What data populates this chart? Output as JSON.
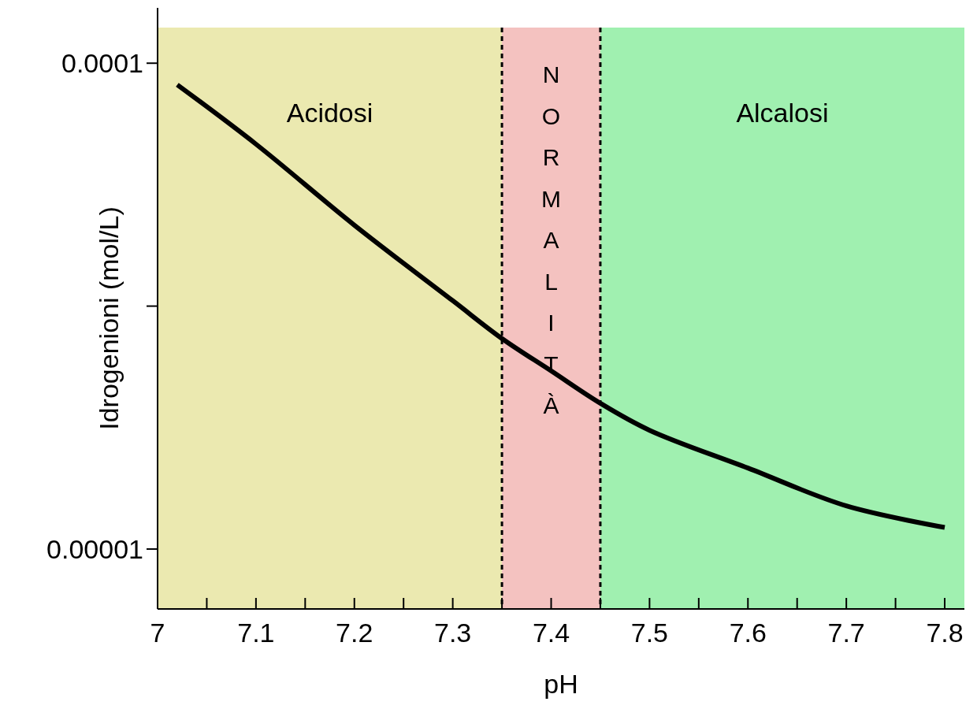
{
  "chart_data": {
    "type": "line",
    "xlabel": "pH",
    "ylabel": "Idrogenioni (mol/L)",
    "x": [
      7.02,
      7.1,
      7.2,
      7.3,
      7.35,
      7.4,
      7.45,
      7.5,
      7.6,
      7.7,
      7.8
    ],
    "series": [
      {
        "color": "#000000",
        "values": [
          9.6e-05,
          8.5e-05,
          7e-05,
          5.6e-05,
          4.9e-05,
          4.3e-05,
          3.7e-05,
          3.2e-05,
          2.5e-05,
          1.8e-05,
          1.4e-05
        ]
      }
    ],
    "xlim": [
      7,
      7.82
    ],
    "ylim": [
      -1.1e-06,
      0.0001066
    ],
    "xticks": [
      7,
      {
        "value": 7.05,
        "label": null
      },
      7.1,
      {
        "value": 7.15,
        "label": null
      },
      7.2,
      {
        "value": 7.25,
        "label": null
      },
      7.3,
      {
        "value": 7.35,
        "label": null
      },
      7.4,
      {
        "value": 7.45,
        "label": null
      },
      7.5,
      {
        "value": 7.55,
        "label": null
      },
      7.6,
      {
        "value": 7.65,
        "label": null
      },
      7.7,
      {
        "value": 7.75,
        "label": null
      },
      7.8
    ],
    "yticks": [
      {
        "value": 1e-05,
        "label": "0.00001"
      },
      {
        "value": 5.5e-05,
        "label": null
      },
      {
        "value": 0.0001,
        "label": "0.0001"
      }
    ],
    "bands": [
      {
        "axis": "x",
        "from": 7,
        "to": 7.35,
        "label": "Acidosi",
        "color": "#ebe9b0"
      },
      {
        "axis": "x",
        "from": 7.35,
        "to": 7.45,
        "label": "NORMALITÀ",
        "color": "#f4c2c0"
      },
      {
        "axis": "x",
        "from": 7.45,
        "to": 7.82,
        "label": "Alcalosi",
        "color": "#a0f0b0"
      }
    ],
    "ref_lines": [
      {
        "axis": "x",
        "value": 7.35,
        "line_style": "dashed",
        "color": "#000000"
      },
      {
        "axis": "x",
        "value": 7.45,
        "line_style": "dashed",
        "color": "#000000"
      }
    ],
    "marker": "none",
    "line_style": "solid"
  }
}
